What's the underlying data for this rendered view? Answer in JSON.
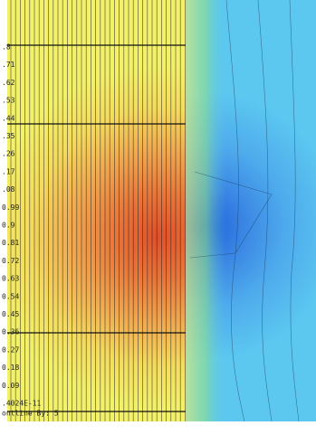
{
  "legend": {
    "labels": [
      ".8",
      ".71",
      ".62",
      ".53",
      ".44",
      ".35",
      ".26",
      ".17",
      ".08",
      "0.99",
      "0.9",
      "0.81",
      "0.72",
      "0.63",
      "0.54",
      "0.45",
      "0.36",
      "0.27",
      "0.18",
      "0.09"
    ],
    "footer": [
      ".4024E-11",
      "ontline     By: 5"
    ]
  }
}
